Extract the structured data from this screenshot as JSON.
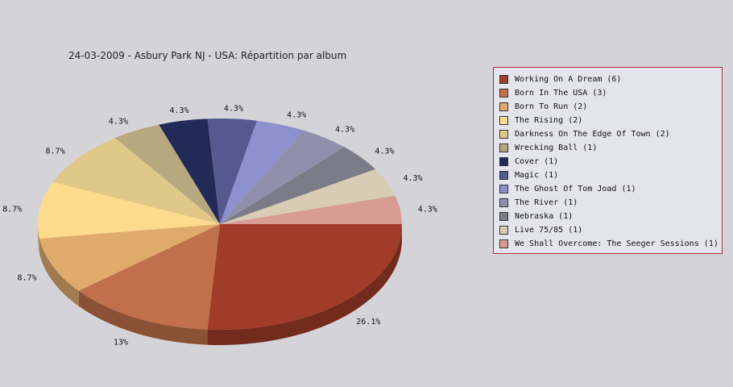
{
  "chart_data": {
    "type": "pie",
    "title": "24-03-2009 - Asbury Park NJ - USA:  Répartition par album",
    "slices": [
      {
        "label": "Working On A Dream (6)",
        "value": 6,
        "percent_label": "26.1%",
        "color": "#a03c28"
      },
      {
        "label": "Born In The USA (3)",
        "value": 3,
        "percent_label": "13%",
        "color": "#c0704a"
      },
      {
        "label": "Born To Run (2)",
        "value": 2,
        "percent_label": "8.7%",
        "color": "#e0aa6c"
      },
      {
        "label": "The Rising (2)",
        "value": 2,
        "percent_label": "8.7%",
        "color": "#fcdc8c"
      },
      {
        "label": "Darkness On The Edge Of Town (2)",
        "value": 2,
        "percent_label": "8.7%",
        "color": "#e0c888"
      },
      {
        "label": "Wrecking Ball (1)",
        "value": 1,
        "percent_label": "4.3%",
        "color": "#b8a880"
      },
      {
        "label": "Cover (1)",
        "value": 1,
        "percent_label": "4.3%",
        "color": "#222a58"
      },
      {
        "label": "Magic (1)",
        "value": 1,
        "percent_label": "4.3%",
        "color": "#545a90"
      },
      {
        "label": "The Ghost Of Tom Joad (1)",
        "value": 1,
        "percent_label": "4.3%",
        "color": "#8c90cc"
      },
      {
        "label": "The River (1)",
        "value": 1,
        "percent_label": "4.3%",
        "color": "#9090ac"
      },
      {
        "label": "Nebraska (1)",
        "value": 1,
        "percent_label": "4.3%",
        "color": "#7c7c88"
      },
      {
        "label": "Live 75/85 (1)",
        "value": 1,
        "percent_label": "4.3%",
        "color": "#d8ccb4"
      },
      {
        "label": "We Shall Overcome: The Seeger Sessions (1)",
        "value": 1,
        "percent_label": "4.3%",
        "color": "#d89c94"
      }
    ],
    "legend_position": "right"
  }
}
